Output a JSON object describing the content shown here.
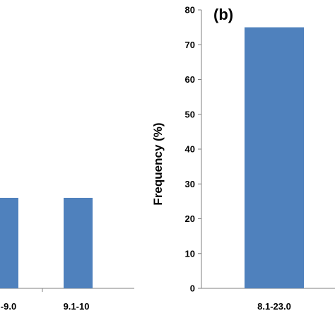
{
  "chart_data": [
    {
      "type": "bar",
      "panel_label": "",
      "categories": [
        "-9.0",
        "9.1-10"
      ],
      "values": [
        26,
        26
      ],
      "ylabel": "",
      "ylim": [
        0,
        80
      ],
      "grid": false,
      "colors": {
        "bar": "#4f81bd"
      }
    },
    {
      "type": "bar",
      "panel_label": "(b)",
      "categories": [
        "8.1-23.0"
      ],
      "values": [
        75
      ],
      "ylabel": "Frequency (%)",
      "ylim": [
        0,
        80
      ],
      "yticks": [
        0,
        10,
        20,
        30,
        40,
        50,
        60,
        70,
        80
      ],
      "grid": false,
      "colors": {
        "bar": "#4f81bd"
      }
    }
  ]
}
